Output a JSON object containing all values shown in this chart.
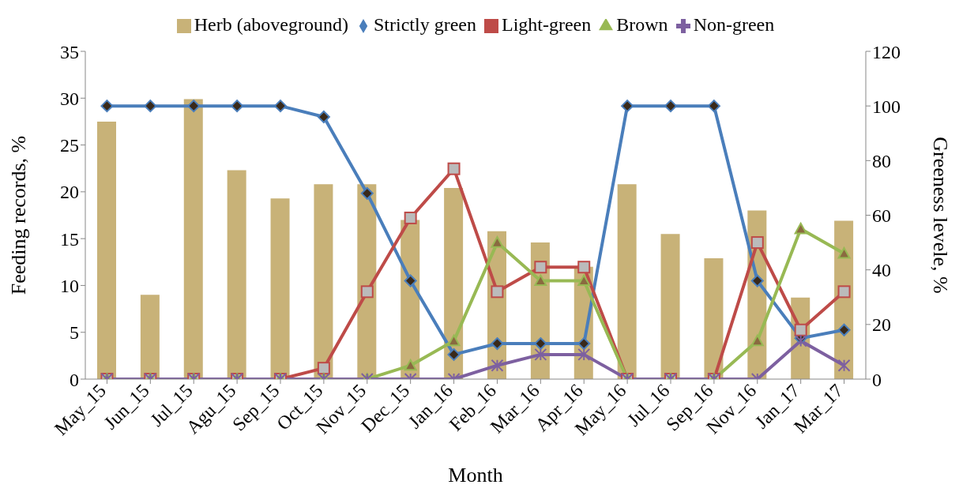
{
  "chart_data": {
    "type": "bar",
    "xlabel": "Month",
    "ylabel": "Feeding records, %",
    "y2label": "Greeness levele, %",
    "categories": [
      "May_15",
      "Jun_15",
      "Jul_15",
      "Agu_15",
      "Sep_15",
      "Oct_15",
      "Nov_15",
      "Dec_15",
      "Jan_16",
      "Feb_16",
      "Mar_16",
      "Apr_16",
      "May_16",
      "Jul_16",
      "Sep_16",
      "Nov_16",
      "Jan_17",
      "Mar_17"
    ],
    "series": [
      {
        "name": "Herb (aboveground)",
        "color": "#c8b278",
        "values": [
          27.5,
          9,
          29.9,
          22.3,
          19.3,
          20.8,
          20.8,
          17,
          20.4,
          15.8,
          14.6,
          12,
          20.8,
          15.5,
          12.9,
          18,
          8.7,
          16.9
        ]
      },
      {
        "name": "Strictly green",
        "type": "line",
        "axis": "y2",
        "marker": "diamond",
        "color": "#4a7ebb",
        "values": [
          100,
          100,
          100,
          100,
          100,
          96,
          68,
          36,
          9,
          13,
          13,
          13,
          100,
          100,
          100,
          36,
          15,
          18
        ]
      },
      {
        "name": "Light-green",
        "type": "line",
        "axis": "y2",
        "marker": "square",
        "color": "#be4b48",
        "values": [
          0,
          0,
          0,
          0,
          0,
          4,
          32,
          59,
          77,
          32,
          41,
          41,
          0,
          0,
          0,
          50,
          18,
          32
        ]
      },
      {
        "name": "Brown",
        "type": "line",
        "axis": "y2",
        "marker": "triangle",
        "color": "#98b954",
        "values": [
          0,
          0,
          0,
          0,
          0,
          0,
          0,
          5,
          14,
          50,
          36,
          36,
          0,
          0,
          0,
          14,
          55,
          46
        ]
      },
      {
        "name": "Non-green",
        "type": "line",
        "axis": "y2",
        "marker": "cross",
        "color": "#7d60a0",
        "values": [
          0,
          0,
          0,
          0,
          0,
          0,
          0,
          0,
          0,
          5,
          9,
          9,
          0,
          0,
          0,
          0,
          14,
          5
        ]
      }
    ],
    "ylim": [
      0,
      35
    ],
    "yticks": [
      0,
      5,
      10,
      15,
      20,
      25,
      30,
      35
    ],
    "y2lim": [
      0,
      120
    ],
    "y2ticks": [
      0,
      20,
      40,
      60,
      80,
      100,
      120
    ],
    "legend": "top",
    "grid": false
  }
}
